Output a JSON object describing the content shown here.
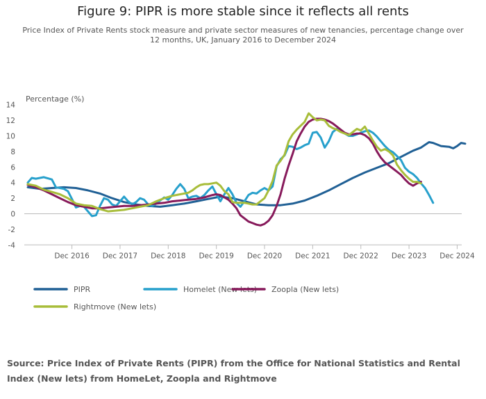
{
  "chart_data": {
    "type": "line",
    "title": "Figure 9: PIPR is more stable since it reflects all rents",
    "subtitle": "Price Index of Private Rents stock measure and private sector measures of new tenancies, percentage change over 12 months, UK, January 2016 to December 2024",
    "ylabel": "Percentage (%)",
    "xlabel": "",
    "x_start": "2016-01",
    "x_end": "2024-12",
    "x_ticks": [
      {
        "month_index": 11,
        "label": "Dec 2016"
      },
      {
        "month_index": 23,
        "label": "Dec 2017"
      },
      {
        "month_index": 35,
        "label": "Dec 2018"
      },
      {
        "month_index": 47,
        "label": "Dec 2019"
      },
      {
        "month_index": 59,
        "label": "Dec 2020"
      },
      {
        "month_index": 71,
        "label": "Dec 2021"
      },
      {
        "month_index": 83,
        "label": "Dec 2022"
      },
      {
        "month_index": 95,
        "label": "Dec 2023"
      },
      {
        "month_index": 107,
        "label": "Dec 2024"
      }
    ],
    "ylim": [
      -4,
      14
    ],
    "y_ticks": [
      -4,
      -2,
      0,
      2,
      4,
      6,
      8,
      10,
      12,
      14
    ],
    "legend_position": "bottom",
    "series": [
      {
        "name": "PIPR",
        "color": "#206095",
        "points": [
          [
            0,
            3.4
          ],
          [
            3,
            3.2
          ],
          [
            6,
            3.3
          ],
          [
            9,
            3.4
          ],
          [
            12,
            3.3
          ],
          [
            15,
            3.0
          ],
          [
            18,
            2.6
          ],
          [
            21,
            2.0
          ],
          [
            24,
            1.5
          ],
          [
            27,
            1.2
          ],
          [
            30,
            1.0
          ],
          [
            33,
            0.9
          ],
          [
            36,
            1.1
          ],
          [
            39,
            1.3
          ],
          [
            42,
            1.6
          ],
          [
            45,
            1.9
          ],
          [
            48,
            2.2
          ],
          [
            51,
            2.0
          ],
          [
            54,
            1.6
          ],
          [
            57,
            1.2
          ],
          [
            60,
            1.1
          ],
          [
            63,
            1.1
          ],
          [
            66,
            1.3
          ],
          [
            69,
            1.7
          ],
          [
            72,
            2.3
          ],
          [
            75,
            3.0
          ],
          [
            78,
            3.8
          ],
          [
            81,
            4.6
          ],
          [
            84,
            5.3
          ],
          [
            87,
            5.9
          ],
          [
            90,
            6.5
          ],
          [
            93,
            7.3
          ],
          [
            96,
            8.1
          ],
          [
            98,
            8.5
          ],
          [
            100,
            9.2
          ],
          [
            101,
            9.1
          ],
          [
            103,
            8.7
          ],
          [
            105,
            8.6
          ],
          [
            106,
            8.4
          ],
          [
            107,
            8.7
          ],
          [
            108,
            9.1
          ],
          [
            109,
            9.0
          ]
        ]
      },
      {
        "name": "Homelet (New lets)",
        "color": "#27a0cc",
        "points": [
          [
            0,
            4.0
          ],
          [
            1,
            4.6
          ],
          [
            2,
            4.5
          ],
          [
            4,
            4.7
          ],
          [
            6,
            4.4
          ],
          [
            7,
            3.4
          ],
          [
            9,
            3.2
          ],
          [
            10,
            2.9
          ],
          [
            11,
            1.9
          ],
          [
            12,
            0.8
          ],
          [
            13,
            1.0
          ],
          [
            14,
            0.9
          ],
          [
            15,
            0.3
          ],
          [
            16,
            -0.3
          ],
          [
            17,
            -0.2
          ],
          [
            18,
            1.0
          ],
          [
            19,
            2.0
          ],
          [
            20,
            1.8
          ],
          [
            21,
            1.2
          ],
          [
            22,
            1.0
          ],
          [
            23,
            1.6
          ],
          [
            24,
            2.2
          ],
          [
            25,
            1.6
          ],
          [
            26,
            1.2
          ],
          [
            27,
            1.5
          ],
          [
            28,
            2.0
          ],
          [
            29,
            1.8
          ],
          [
            30,
            1.2
          ],
          [
            31,
            1.0
          ],
          [
            32,
            1.3
          ],
          [
            33,
            1.7
          ],
          [
            34,
            2.1
          ],
          [
            35,
            1.8
          ],
          [
            36,
            2.4
          ],
          [
            37,
            3.2
          ],
          [
            38,
            3.8
          ],
          [
            39,
            3.2
          ],
          [
            40,
            2.0
          ],
          [
            41,
            2.2
          ],
          [
            42,
            2.3
          ],
          [
            43,
            2.0
          ],
          [
            44,
            2.4
          ],
          [
            45,
            3.0
          ],
          [
            46,
            3.5
          ],
          [
            47,
            2.5
          ],
          [
            48,
            1.6
          ],
          [
            49,
            2.5
          ],
          [
            50,
            3.3
          ],
          [
            51,
            2.5
          ],
          [
            52,
            1.4
          ],
          [
            53,
            0.9
          ],
          [
            54,
            1.6
          ],
          [
            55,
            2.4
          ],
          [
            56,
            2.7
          ],
          [
            57,
            2.6
          ],
          [
            58,
            3.0
          ],
          [
            59,
            3.3
          ],
          [
            60,
            3.0
          ],
          [
            61,
            3.5
          ],
          [
            62,
            6.1
          ],
          [
            63,
            7.0
          ],
          [
            64,
            7.5
          ],
          [
            65,
            8.7
          ],
          [
            66,
            8.6
          ],
          [
            67,
            8.3
          ],
          [
            68,
            8.5
          ],
          [
            69,
            8.8
          ],
          [
            70,
            9.0
          ],
          [
            71,
            10.4
          ],
          [
            72,
            10.5
          ],
          [
            73,
            9.8
          ],
          [
            74,
            8.5
          ],
          [
            75,
            9.3
          ],
          [
            76,
            10.5
          ],
          [
            77,
            10.9
          ],
          [
            78,
            10.6
          ],
          [
            79,
            10.3
          ],
          [
            80,
            10.0
          ],
          [
            81,
            10.0
          ],
          [
            82,
            10.2
          ],
          [
            83,
            10.4
          ],
          [
            84,
            10.6
          ],
          [
            85,
            10.7
          ],
          [
            86,
            10.4
          ],
          [
            87,
            9.9
          ],
          [
            88,
            9.3
          ],
          [
            89,
            8.7
          ],
          [
            90,
            8.2
          ],
          [
            91,
            7.9
          ],
          [
            92,
            7.4
          ],
          [
            93,
            6.9
          ],
          [
            94,
            5.9
          ],
          [
            95,
            5.4
          ],
          [
            96,
            5.1
          ],
          [
            97,
            4.6
          ],
          [
            98,
            3.9
          ],
          [
            99,
            3.3
          ],
          [
            100,
            2.4
          ],
          [
            101,
            1.4
          ]
        ]
      },
      {
        "name": "Zoopla (New lets)",
        "color": "#871a5b",
        "points": [
          [
            0,
            3.7
          ],
          [
            2,
            3.4
          ],
          [
            4,
            3.0
          ],
          [
            6,
            2.5
          ],
          [
            8,
            2.0
          ],
          [
            10,
            1.5
          ],
          [
            12,
            1.1
          ],
          [
            14,
            0.9
          ],
          [
            16,
            0.7
          ],
          [
            18,
            0.7
          ],
          [
            20,
            0.8
          ],
          [
            22,
            0.9
          ],
          [
            24,
            1.0
          ],
          [
            26,
            1.0
          ],
          [
            28,
            1.1
          ],
          [
            30,
            1.2
          ],
          [
            32,
            1.3
          ],
          [
            34,
            1.4
          ],
          [
            36,
            1.6
          ],
          [
            38,
            1.7
          ],
          [
            40,
            1.8
          ],
          [
            42,
            1.9
          ],
          [
            44,
            2.1
          ],
          [
            46,
            2.4
          ],
          [
            47,
            2.5
          ],
          [
            48,
            2.4
          ],
          [
            49,
            2.1
          ],
          [
            50,
            1.8
          ],
          [
            51,
            1.3
          ],
          [
            52,
            0.7
          ],
          [
            53,
            -0.2
          ],
          [
            54,
            -0.6
          ],
          [
            55,
            -1.0
          ],
          [
            56,
            -1.2
          ],
          [
            57,
            -1.4
          ],
          [
            58,
            -1.5
          ],
          [
            59,
            -1.3
          ],
          [
            60,
            -0.9
          ],
          [
            61,
            -0.2
          ],
          [
            62,
            1.0
          ],
          [
            63,
            2.5
          ],
          [
            64,
            4.5
          ],
          [
            65,
            6.2
          ],
          [
            66,
            7.7
          ],
          [
            67,
            9.3
          ],
          [
            68,
            10.3
          ],
          [
            69,
            11.2
          ],
          [
            70,
            11.8
          ],
          [
            71,
            12.1
          ],
          [
            72,
            12.2
          ],
          [
            73,
            12.2
          ],
          [
            74,
            12.1
          ],
          [
            75,
            11.9
          ],
          [
            76,
            11.6
          ],
          [
            77,
            11.2
          ],
          [
            78,
            10.8
          ],
          [
            79,
            10.4
          ],
          [
            80,
            10.2
          ],
          [
            81,
            10.2
          ],
          [
            82,
            10.3
          ],
          [
            83,
            10.3
          ],
          [
            84,
            10.1
          ],
          [
            85,
            9.7
          ],
          [
            86,
            9.0
          ],
          [
            87,
            8.0
          ],
          [
            88,
            7.2
          ],
          [
            89,
            6.6
          ],
          [
            90,
            6.2
          ],
          [
            91,
            5.8
          ],
          [
            92,
            5.4
          ],
          [
            93,
            5.0
          ],
          [
            94,
            4.4
          ],
          [
            95,
            3.9
          ],
          [
            96,
            3.6
          ],
          [
            97,
            3.9
          ],
          [
            98,
            4.1
          ]
        ]
      },
      {
        "name": "Rightmove (New lets)",
        "color": "#a8bd3a",
        "points": [
          [
            0,
            3.8
          ],
          [
            2,
            3.6
          ],
          [
            4,
            3.1
          ],
          [
            6,
            2.8
          ],
          [
            8,
            2.5
          ],
          [
            10,
            2.0
          ],
          [
            12,
            1.3
          ],
          [
            14,
            1.1
          ],
          [
            16,
            1.0
          ],
          [
            18,
            0.6
          ],
          [
            20,
            0.3
          ],
          [
            22,
            0.4
          ],
          [
            24,
            0.5
          ],
          [
            26,
            0.7
          ],
          [
            28,
            0.9
          ],
          [
            30,
            1.1
          ],
          [
            32,
            1.6
          ],
          [
            34,
            2.0
          ],
          [
            36,
            2.3
          ],
          [
            38,
            2.5
          ],
          [
            40,
            2.7
          ],
          [
            41,
            3.0
          ],
          [
            42,
            3.4
          ],
          [
            43,
            3.7
          ],
          [
            44,
            3.8
          ],
          [
            45,
            3.8
          ],
          [
            46,
            3.9
          ],
          [
            47,
            4.0
          ],
          [
            48,
            3.6
          ],
          [
            49,
            2.9
          ],
          [
            50,
            2.5
          ],
          [
            51,
            1.5
          ],
          [
            52,
            1.4
          ],
          [
            53,
            1.4
          ],
          [
            54,
            1.4
          ],
          [
            55,
            1.3
          ],
          [
            56,
            1.2
          ],
          [
            57,
            1.2
          ],
          [
            58,
            1.6
          ],
          [
            59,
            2.0
          ],
          [
            60,
            3.0
          ],
          [
            61,
            4.2
          ],
          [
            62,
            6.2
          ],
          [
            63,
            6.8
          ],
          [
            64,
            7.6
          ],
          [
            65,
            9.3
          ],
          [
            66,
            10.2
          ],
          [
            67,
            10.8
          ],
          [
            68,
            11.3
          ],
          [
            69,
            11.8
          ],
          [
            70,
            12.9
          ],
          [
            71,
            12.4
          ],
          [
            72,
            12.0
          ],
          [
            73,
            12.1
          ],
          [
            74,
            12.0
          ],
          [
            75,
            11.3
          ],
          [
            76,
            11.0
          ],
          [
            77,
            10.8
          ],
          [
            78,
            10.5
          ],
          [
            79,
            10.3
          ],
          [
            80,
            10.1
          ],
          [
            81,
            10.5
          ],
          [
            82,
            10.9
          ],
          [
            83,
            10.7
          ],
          [
            84,
            11.2
          ],
          [
            85,
            10.3
          ],
          [
            86,
            9.4
          ],
          [
            87,
            8.6
          ],
          [
            88,
            8.1
          ],
          [
            89,
            8.3
          ],
          [
            90,
            8.0
          ],
          [
            91,
            7.5
          ],
          [
            92,
            6.3
          ],
          [
            93,
            5.6
          ],
          [
            94,
            5.0
          ],
          [
            95,
            4.5
          ],
          [
            96,
            4.1
          ],
          [
            97,
            4.1
          ],
          [
            98,
            3.9
          ]
        ]
      }
    ]
  },
  "source_note": "Source: Price Index of Private Rents (PIPR) from the Office for National Statistics and Rental Index (New lets) from HomeLet, Zoopla and Rightmove"
}
